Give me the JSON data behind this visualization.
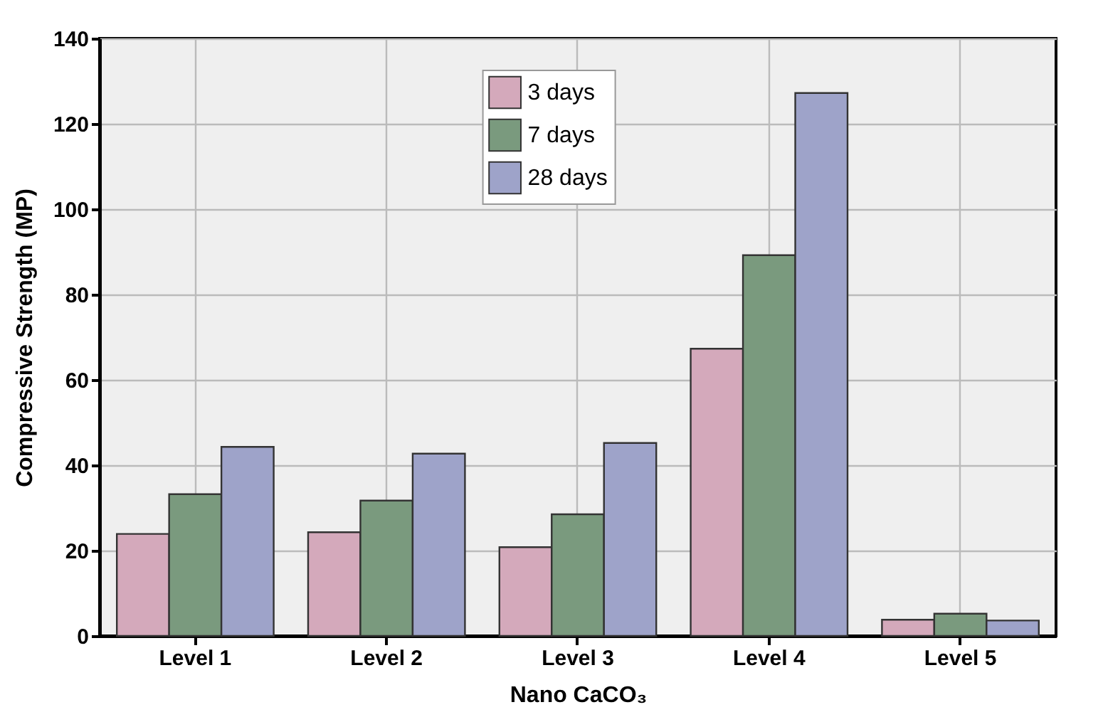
{
  "chart_data": {
    "type": "bar",
    "xlabel": "Nano CaCO₃",
    "ylabel": "Compressive Strength (MP)",
    "categories": [
      "Level 1",
      "Level 2",
      "Level 3",
      "Level 4",
      "Level 5"
    ],
    "series": [
      {
        "name": "3 days",
        "color": "#d4a9bb",
        "values": [
          23.9,
          24.3,
          20.8,
          67.3,
          3.8
        ]
      },
      {
        "name": "7 days",
        "color": "#7a9a7e",
        "values": [
          33.2,
          31.7,
          28.5,
          89.2,
          5.2
        ]
      },
      {
        "name": "28 days",
        "color": "#9ea3c9",
        "values": [
          44.3,
          42.7,
          45.2,
          127.2,
          3.6
        ]
      }
    ],
    "ylim": [
      0,
      140
    ],
    "yticks": [
      0,
      20,
      40,
      60,
      80,
      100,
      120,
      140
    ],
    "grid": true,
    "legend": "top"
  }
}
